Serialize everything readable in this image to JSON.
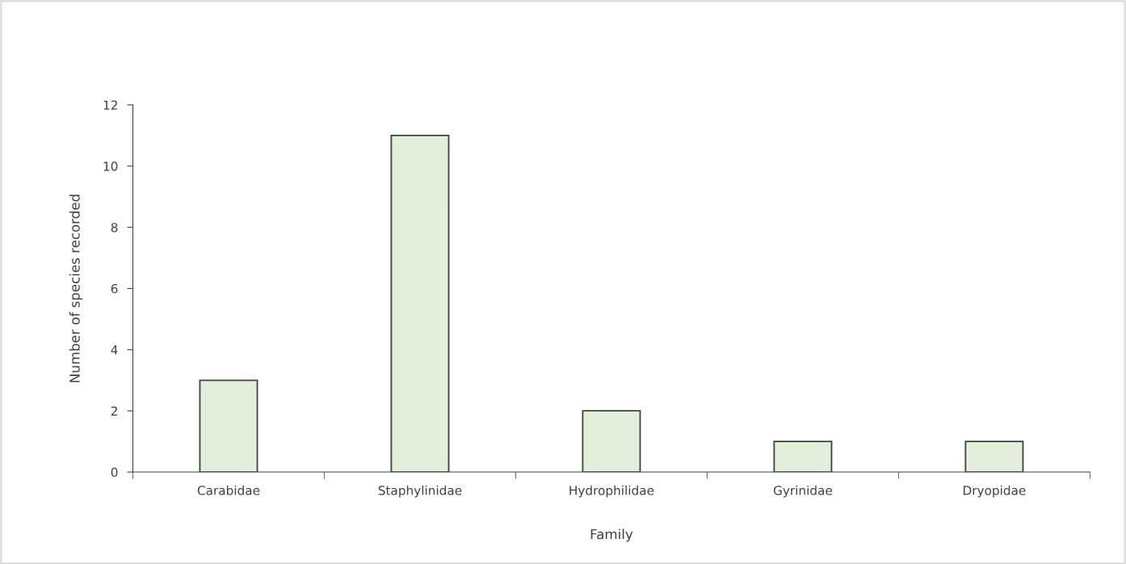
{
  "chart_data": {
    "type": "bar",
    "xlabel": "Family",
    "ylabel": "Number of species recorded",
    "categories": [
      "Carabidae",
      "Staphylinidae",
      "Hydrophilidae",
      "Gyrinidae",
      "Dryopidae"
    ],
    "values": [
      3,
      11,
      2,
      1,
      1
    ],
    "color": "#e2efda",
    "ylim": [
      0,
      12
    ],
    "yticks": [
      0,
      2,
      4,
      6,
      8,
      10,
      12
    ],
    "grid": false,
    "legend": false
  }
}
